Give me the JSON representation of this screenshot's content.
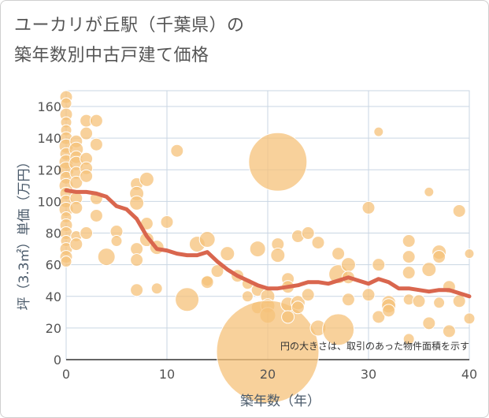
{
  "title_line1": "ユーカリが丘駅（千葉県）の",
  "title_line2": "築年数別中古戸建て価格",
  "chart_data": {
    "type": "scatter",
    "xlabel": "築年数（年）",
    "ylabel": "坪（3.3㎡）単価（万円）",
    "xlim": [
      0,
      40
    ],
    "ylim": [
      0,
      170
    ],
    "xticks": [
      0,
      10,
      20,
      30,
      40
    ],
    "yticks": [
      0,
      20,
      40,
      60,
      80,
      100,
      120,
      140,
      160
    ],
    "grid": true,
    "note": "円の大きさは、取引のあった物件面積を示す",
    "point_color": "#f5c27a",
    "line_color": "#d9664e",
    "points": [
      {
        "x": 0,
        "y": 166,
        "s": 8
      },
      {
        "x": 0,
        "y": 162,
        "s": 7
      },
      {
        "x": 0,
        "y": 155,
        "s": 8
      },
      {
        "x": 0,
        "y": 150,
        "s": 7
      },
      {
        "x": 0,
        "y": 145,
        "s": 7
      },
      {
        "x": 0,
        "y": 140,
        "s": 8
      },
      {
        "x": 0,
        "y": 135,
        "s": 9
      },
      {
        "x": 0,
        "y": 130,
        "s": 8
      },
      {
        "x": 0,
        "y": 125,
        "s": 9
      },
      {
        "x": 0,
        "y": 120,
        "s": 10
      },
      {
        "x": 0,
        "y": 115,
        "s": 8
      },
      {
        "x": 0,
        "y": 110,
        "s": 9
      },
      {
        "x": 0,
        "y": 105,
        "s": 8
      },
      {
        "x": 0,
        "y": 100,
        "s": 8
      },
      {
        "x": 0,
        "y": 95,
        "s": 9
      },
      {
        "x": 0,
        "y": 90,
        "s": 7
      },
      {
        "x": 0,
        "y": 85,
        "s": 8
      },
      {
        "x": 0,
        "y": 80,
        "s": 8
      },
      {
        "x": 0,
        "y": 75,
        "s": 7
      },
      {
        "x": 0,
        "y": 70,
        "s": 8
      },
      {
        "x": 0,
        "y": 65,
        "s": 8
      },
      {
        "x": 0,
        "y": 62,
        "s": 7
      },
      {
        "x": 1,
        "y": 138,
        "s": 8
      },
      {
        "x": 1,
        "y": 133,
        "s": 9
      },
      {
        "x": 1,
        "y": 128,
        "s": 8
      },
      {
        "x": 1,
        "y": 124,
        "s": 9
      },
      {
        "x": 1,
        "y": 118,
        "s": 8
      },
      {
        "x": 1,
        "y": 112,
        "s": 8
      },
      {
        "x": 1,
        "y": 102,
        "s": 8
      },
      {
        "x": 1,
        "y": 96,
        "s": 8
      },
      {
        "x": 1,
        "y": 78,
        "s": 7
      },
      {
        "x": 1,
        "y": 73,
        "s": 8
      },
      {
        "x": 2,
        "y": 151,
        "s": 8
      },
      {
        "x": 2,
        "y": 143,
        "s": 8
      },
      {
        "x": 2,
        "y": 127,
        "s": 8
      },
      {
        "x": 2,
        "y": 121,
        "s": 8
      },
      {
        "x": 2,
        "y": 116,
        "s": 8
      },
      {
        "x": 2,
        "y": 80,
        "s": 8
      },
      {
        "x": 3,
        "y": 151,
        "s": 8
      },
      {
        "x": 3,
        "y": 136,
        "s": 8
      },
      {
        "x": 3,
        "y": 102,
        "s": 8
      },
      {
        "x": 3,
        "y": 91,
        "s": 8
      },
      {
        "x": 4,
        "y": 65,
        "s": 11
      },
      {
        "x": 5,
        "y": 81,
        "s": 8
      },
      {
        "x": 5,
        "y": 75,
        "s": 7
      },
      {
        "x": 7,
        "y": 111,
        "s": 8
      },
      {
        "x": 7,
        "y": 105,
        "s": 9
      },
      {
        "x": 7,
        "y": 99,
        "s": 9
      },
      {
        "x": 7,
        "y": 70,
        "s": 8
      },
      {
        "x": 7,
        "y": 63,
        "s": 8
      },
      {
        "x": 7,
        "y": 44,
        "s": 8
      },
      {
        "x": 8,
        "y": 114,
        "s": 9
      },
      {
        "x": 8,
        "y": 86,
        "s": 8
      },
      {
        "x": 8,
        "y": 76,
        "s": 9
      },
      {
        "x": 9,
        "y": 71,
        "s": 9
      },
      {
        "x": 9,
        "y": 45,
        "s": 7
      },
      {
        "x": 10,
        "y": 87,
        "s": 8
      },
      {
        "x": 11,
        "y": 132,
        "s": 8
      },
      {
        "x": 12,
        "y": 38,
        "s": 15
      },
      {
        "x": 13,
        "y": 73,
        "s": 10
      },
      {
        "x": 14,
        "y": 76,
        "s": 10
      },
      {
        "x": 14,
        "y": 50,
        "s": 7
      },
      {
        "x": 14,
        "y": 49,
        "s": 8
      },
      {
        "x": 15,
        "y": 56,
        "s": 8
      },
      {
        "x": 16,
        "y": 67,
        "s": 9
      },
      {
        "x": 17,
        "y": 53,
        "s": 8
      },
      {
        "x": 18,
        "y": 48,
        "s": 7
      },
      {
        "x": 18,
        "y": 40,
        "s": 7
      },
      {
        "x": 19,
        "y": 70,
        "s": 10
      },
      {
        "x": 19,
        "y": 44,
        "s": 8
      },
      {
        "x": 19,
        "y": 33,
        "s": 8
      },
      {
        "x": 20,
        "y": 40,
        "s": 9
      },
      {
        "x": 20,
        "y": 34,
        "s": 9
      },
      {
        "x": 20,
        "y": 28,
        "s": 10
      },
      {
        "x": 21,
        "y": 125,
        "s": 37
      },
      {
        "x": 21,
        "y": 73,
        "s": 8
      },
      {
        "x": 21,
        "y": 66,
        "s": 9
      },
      {
        "x": 20,
        "y": 5,
        "s": 65
      },
      {
        "x": 22,
        "y": 51,
        "s": 8
      },
      {
        "x": 22,
        "y": 46,
        "s": 8
      },
      {
        "x": 22,
        "y": 35,
        "s": 9
      },
      {
        "x": 22,
        "y": 27,
        "s": 8
      },
      {
        "x": 23,
        "y": 78,
        "s": 8
      },
      {
        "x": 23,
        "y": 36,
        "s": 9
      },
      {
        "x": 23,
        "y": 33,
        "s": 8
      },
      {
        "x": 24,
        "y": 80,
        "s": 8
      },
      {
        "x": 24,
        "y": 41,
        "s": 8
      },
      {
        "x": 25,
        "y": 74,
        "s": 8
      },
      {
        "x": 25,
        "y": 20,
        "s": 10
      },
      {
        "x": 27,
        "y": 67,
        "s": 8
      },
      {
        "x": 27,
        "y": 54,
        "s": 12
      },
      {
        "x": 27,
        "y": 19,
        "s": 20
      },
      {
        "x": 28,
        "y": 60,
        "s": 9
      },
      {
        "x": 28,
        "y": 52,
        "s": 8
      },
      {
        "x": 28,
        "y": 38,
        "s": 8
      },
      {
        "x": 30,
        "y": 96,
        "s": 8
      },
      {
        "x": 30,
        "y": 41,
        "s": 8
      },
      {
        "x": 31,
        "y": 144,
        "s": 6
      },
      {
        "x": 31,
        "y": 60,
        "s": 8
      },
      {
        "x": 31,
        "y": 27,
        "s": 8
      },
      {
        "x": 32,
        "y": 36,
        "s": 9
      },
      {
        "x": 32,
        "y": 34,
        "s": 9
      },
      {
        "x": 32,
        "y": 31,
        "s": 8
      },
      {
        "x": 34,
        "y": 75,
        "s": 8
      },
      {
        "x": 34,
        "y": 65,
        "s": 8
      },
      {
        "x": 34,
        "y": 55,
        "s": 8
      },
      {
        "x": 34,
        "y": 38,
        "s": 7
      },
      {
        "x": 34,
        "y": 13,
        "s": 7
      },
      {
        "x": 35,
        "y": 37,
        "s": 8
      },
      {
        "x": 36,
        "y": 106,
        "s": 6
      },
      {
        "x": 36,
        "y": 57,
        "s": 9
      },
      {
        "x": 36,
        "y": 23,
        "s": 8
      },
      {
        "x": 37,
        "y": 68,
        "s": 9
      },
      {
        "x": 37,
        "y": 65,
        "s": 8
      },
      {
        "x": 37,
        "y": 36,
        "s": 7
      },
      {
        "x": 38,
        "y": 46,
        "s": 8
      },
      {
        "x": 38,
        "y": 18,
        "s": 8
      },
      {
        "x": 39,
        "y": 94,
        "s": 8
      },
      {
        "x": 39,
        "y": 37,
        "s": 8
      },
      {
        "x": 40,
        "y": 67,
        "s": 6
      },
      {
        "x": 40,
        "y": 26,
        "s": 7
      }
    ],
    "trend": [
      [
        0,
        107
      ],
      [
        1,
        106
      ],
      [
        2,
        106
      ],
      [
        3,
        105
      ],
      [
        4,
        103
      ],
      [
        5,
        97
      ],
      [
        6,
        95
      ],
      [
        7,
        89
      ],
      [
        8,
        78
      ],
      [
        9,
        70
      ],
      [
        10,
        69
      ],
      [
        11,
        67
      ],
      [
        12,
        66
      ],
      [
        13,
        66
      ],
      [
        14,
        68
      ],
      [
        15,
        62
      ],
      [
        16,
        57
      ],
      [
        17,
        53
      ],
      [
        18,
        50
      ],
      [
        19,
        47
      ],
      [
        20,
        45
      ],
      [
        21,
        45
      ],
      [
        22,
        46
      ],
      [
        23,
        47
      ],
      [
        24,
        49
      ],
      [
        25,
        49
      ],
      [
        26,
        48
      ],
      [
        27,
        50
      ],
      [
        28,
        52
      ],
      [
        29,
        50
      ],
      [
        30,
        48
      ],
      [
        31,
        51
      ],
      [
        32,
        49
      ],
      [
        33,
        45
      ],
      [
        34,
        45
      ],
      [
        35,
        44
      ],
      [
        36,
        43
      ],
      [
        37,
        44
      ],
      [
        38,
        44
      ],
      [
        39,
        42
      ],
      [
        40,
        40
      ]
    ]
  }
}
